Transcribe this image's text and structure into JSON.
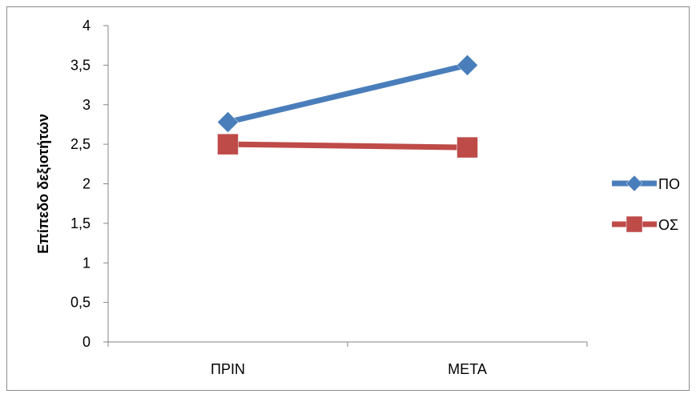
{
  "chart_data": {
    "type": "line",
    "title": "",
    "xlabel": "",
    "ylabel": "Επίπεδο δεξιοτήτων",
    "categories": [
      "ΠΡΙΝ",
      "ΜΕΤΑ"
    ],
    "ylim": [
      0,
      4
    ],
    "yticks": [
      "0",
      "0,5",
      "1",
      "1,5",
      "2",
      "2,5",
      "3",
      "3,5",
      "4"
    ],
    "ytick_values": [
      0,
      0.5,
      1,
      1.5,
      2,
      2.5,
      3,
      3.5,
      4
    ],
    "grid": false,
    "legend_position": "right",
    "series": [
      {
        "name": "ΠΟ",
        "values": [
          2.78,
          3.5
        ],
        "color": "#4a7ebb",
        "marker": "diamond"
      },
      {
        "name": "ΟΣ",
        "values": [
          2.5,
          2.46
        ],
        "color": "#be4b48",
        "marker": "square"
      }
    ]
  }
}
